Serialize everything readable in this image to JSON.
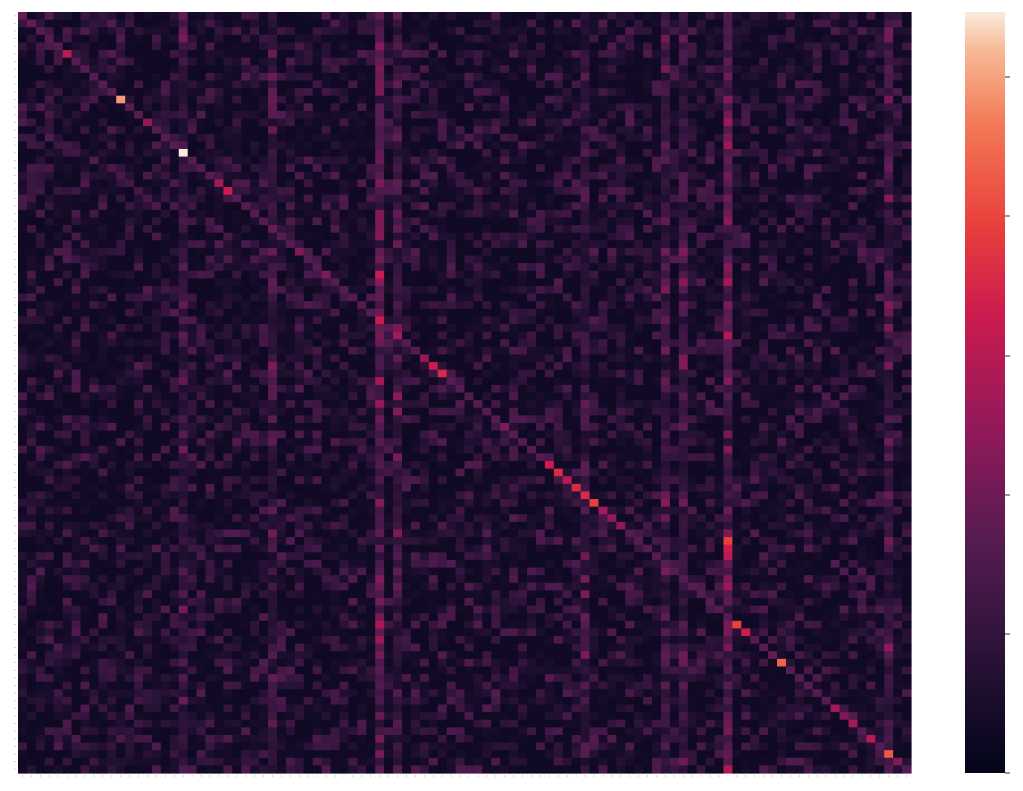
{
  "chart_data": {
    "type": "heatmap",
    "title": "",
    "xlabel": "",
    "ylabel": "",
    "n_rows": 100,
    "n_cols": 100,
    "colormap": "rocket",
    "colorbar": {
      "tick_count": 6,
      "tick_labels": [
        "",
        "",
        "",
        "",
        "",
        ""
      ],
      "direction": "dark-bottom-light-top"
    },
    "diagonal_intensity": [
      0.35,
      0.35,
      0.3,
      0.3,
      0.3,
      0.55,
      0.3,
      0.3,
      0.3,
      0.3,
      0.3,
      0.9,
      0.3,
      0.3,
      0.45,
      0.3,
      0.3,
      0.3,
      1.0,
      0.3,
      0.3,
      0.3,
      0.5,
      0.6,
      0.3,
      0.3,
      0.3,
      0.3,
      0.35,
      0.3,
      0.3,
      0.4,
      0.3,
      0.3,
      0.4,
      0.3,
      0.3,
      0.3,
      0.3,
      0.3,
      0.6,
      0.3,
      0.5,
      0.3,
      0.3,
      0.45,
      0.6,
      0.65,
      0.3,
      0.3,
      0.3,
      0.3,
      0.3,
      0.3,
      0.4,
      0.3,
      0.3,
      0.3,
      0.3,
      0.6,
      0.65,
      0.55,
      0.65,
      0.65,
      0.72,
      0.5,
      0.45,
      0.45,
      0.3,
      0.3,
      0.3,
      0.3,
      0.3,
      0.3,
      0.3,
      0.3,
      0.3,
      0.3,
      0.3,
      0.3,
      0.72,
      0.6,
      0.3,
      0.3,
      0.35,
      0.8,
      0.3,
      0.3,
      0.3,
      0.3,
      0.3,
      0.5,
      0.4,
      0.5,
      0.3,
      0.55,
      0.3,
      0.78,
      0.4,
      0.3
    ],
    "background_intensity": 0.05,
    "noise_amplitude": 0.12,
    "bright_columns": [
      {
        "col": 40,
        "intensity": 0.2
      },
      {
        "col": 42,
        "intensity": 0.12
      },
      {
        "col": 18,
        "intensity": 0.1
      },
      {
        "col": 28,
        "intensity": 0.1
      },
      {
        "col": 63,
        "intensity": 0.1
      },
      {
        "col": 72,
        "intensity": 0.12
      },
      {
        "col": 74,
        "intensity": 0.12
      },
      {
        "col": 79,
        "intensity": 0.22
      },
      {
        "col": 97,
        "intensity": 0.14
      }
    ],
    "hot_cells": [
      {
        "row": 34,
        "col": 40,
        "value": 0.6
      },
      {
        "row": 69,
        "col": 79,
        "value": 0.72
      },
      {
        "row": 70,
        "col": 79,
        "value": 0.6
      },
      {
        "row": 71,
        "col": 79,
        "value": 0.55
      },
      {
        "row": 35,
        "col": 79,
        "value": 0.5
      },
      {
        "row": 32,
        "col": 79,
        "value": 0.3
      },
      {
        "row": 18,
        "col": 18,
        "value": 1.0
      }
    ]
  }
}
